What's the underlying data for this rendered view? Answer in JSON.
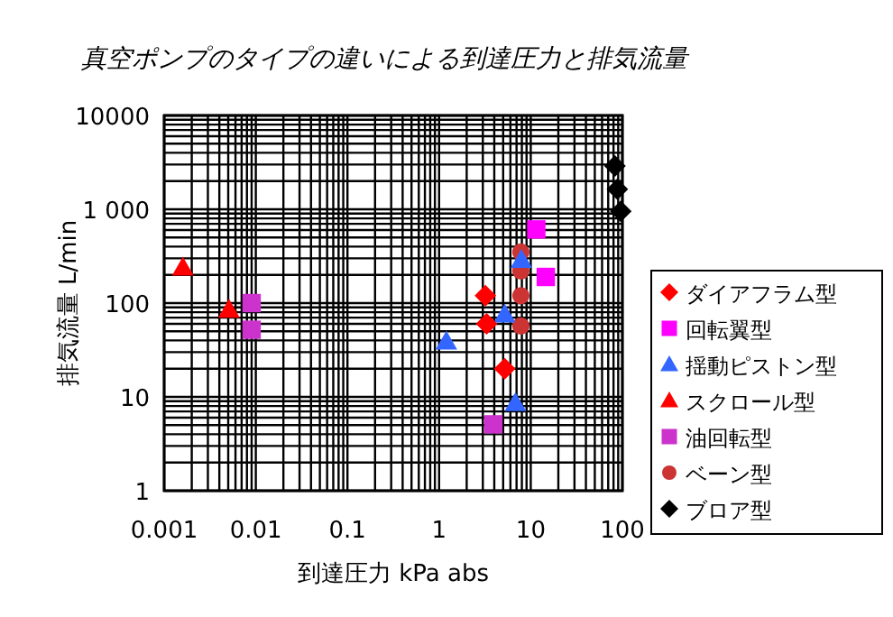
{
  "chart_data": {
    "type": "scatter",
    "title": "真空ポンプのタイプの違いによる到達圧力と排気流量",
    "xlabel": "到達圧力  kPa abs",
    "ylabel": "排気流量  L/min",
    "log": "xy",
    "grid": true,
    "legend": "right",
    "xlim": [
      0.001,
      100
    ],
    "ylim": [
      1,
      10000
    ],
    "xticks": [
      0.001,
      0.01,
      0.1,
      1,
      10,
      100
    ],
    "yticks": [
      1,
      10,
      100,
      {
        "value": 1000,
        "label": "1 000"
      },
      10000
    ],
    "series": [
      {
        "name": "ダイアフラム型",
        "color": "#ff0000",
        "marker": "diamond",
        "x": [
          3.2,
          3.3,
          5.2
        ],
        "values": [
          120,
          60,
          20
        ]
      },
      {
        "name": "回転翼型",
        "color": "#ff00ff",
        "marker": "square",
        "x": [
          11.5,
          14.6
        ],
        "values": [
          610,
          190
        ]
      },
      {
        "name": "揺動ピストン型",
        "color": "#3366ff",
        "marker": "triangle",
        "x": [
          7.9,
          5.2,
          1.2,
          6.8
        ],
        "values": [
          290,
          76,
          39,
          8.6
        ]
      },
      {
        "name": "スクロール型",
        "color": "#ff0000",
        "marker": "triangle",
        "x": [
          0.0016,
          0.0051
        ],
        "values": [
          240,
          85
        ]
      },
      {
        "name": "油回転型",
        "color": "#cc33cc",
        "marker": "square",
        "x": [
          0.009,
          0.009,
          3.9
        ],
        "values": [
          100,
          52,
          5.1
        ]
      },
      {
        "name": "ベーン型",
        "color": "#cc3333",
        "marker": "circle",
        "x": [
          7.8,
          7.8,
          7.8,
          7.8
        ],
        "values": [
          350,
          220,
          120,
          57
        ]
      },
      {
        "name": "ブロア型",
        "color": "#000000",
        "marker": "diamond",
        "x": [
          83,
          88,
          96
        ],
        "values": [
          2890,
          1640,
          950
        ]
      }
    ]
  }
}
